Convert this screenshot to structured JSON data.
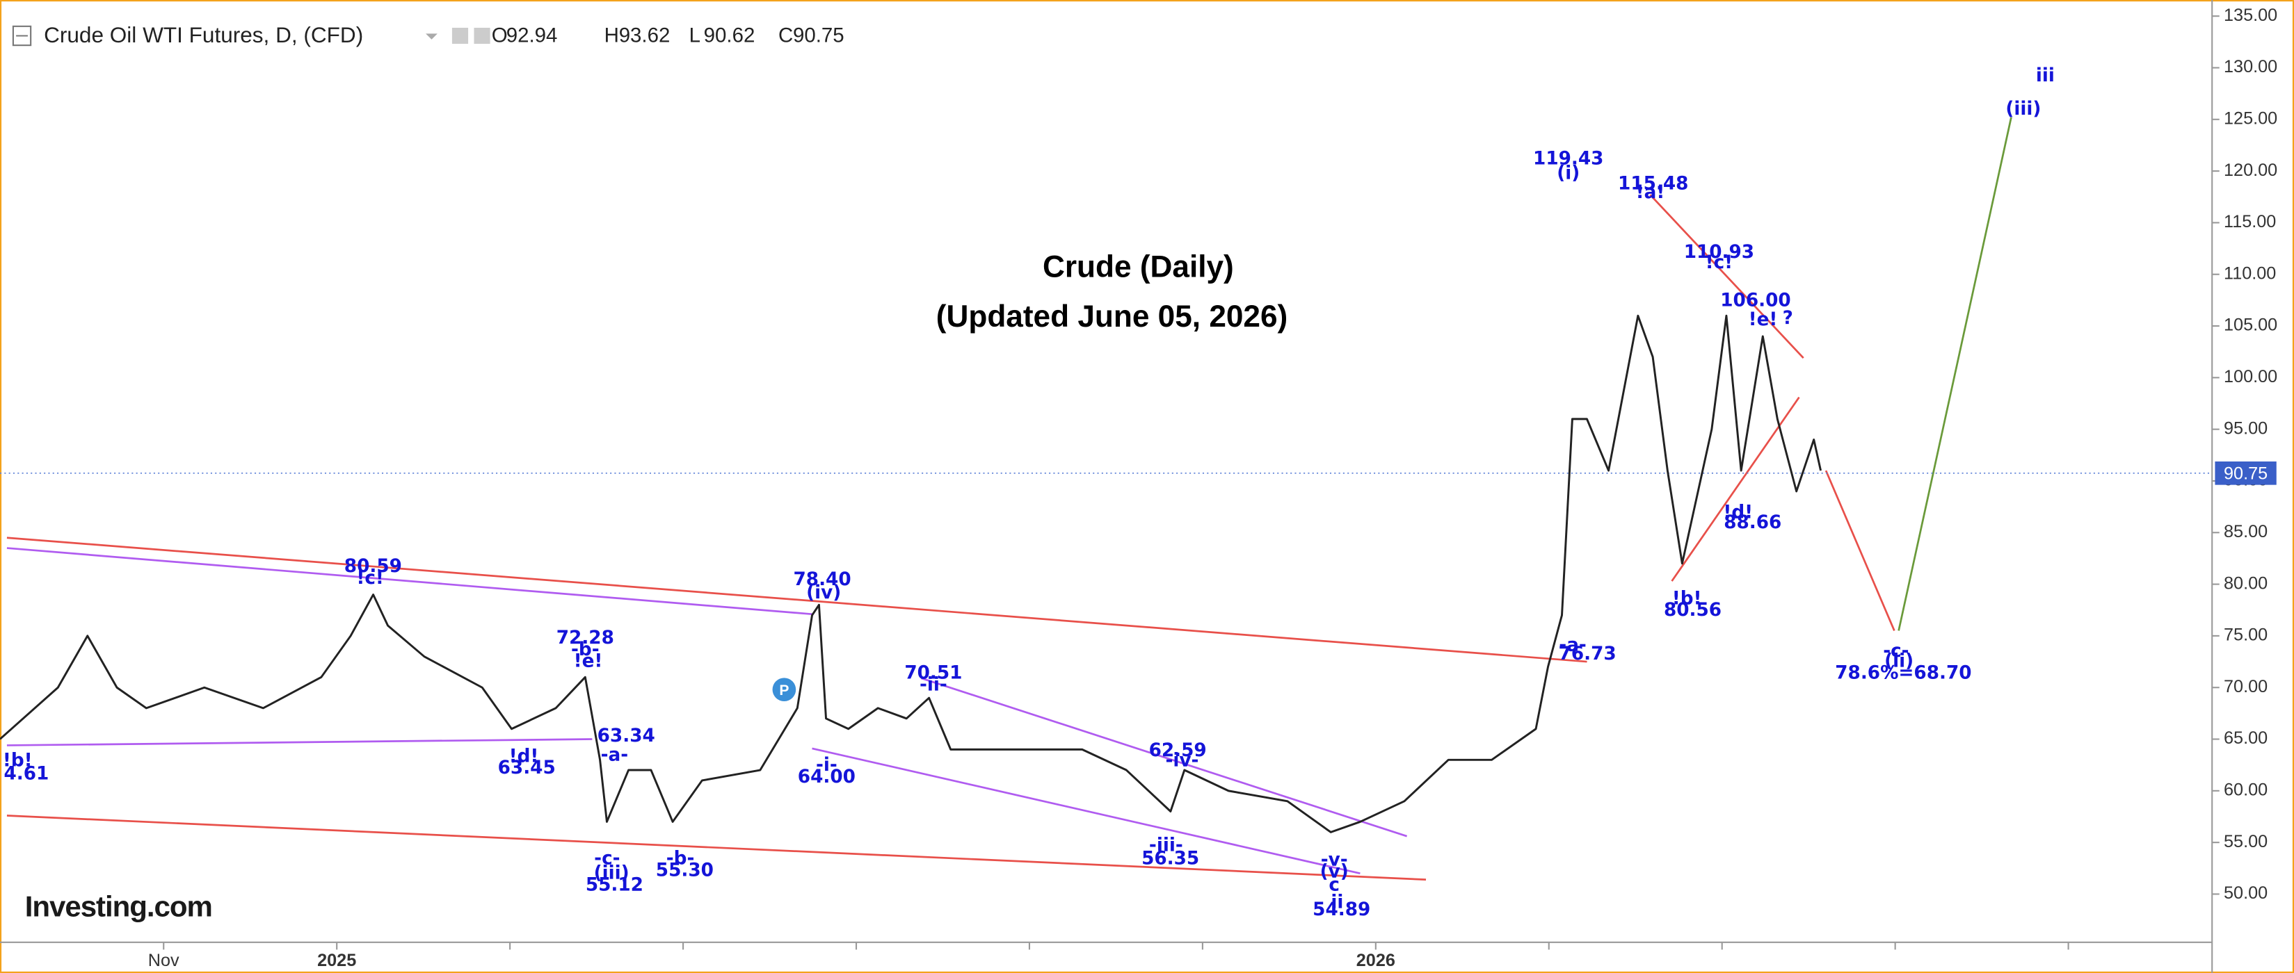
{
  "chart_data": {
    "type": "line",
    "header": {
      "symbol": "Crude Oil WTI Futures, D, (CFD)",
      "ohlc": [
        {
          "label": "O",
          "value": "92.94"
        },
        {
          "label": "H",
          "value": "93.62"
        },
        {
          "label": "L",
          "value": "90.62"
        },
        {
          "label": "C",
          "value": "90.75"
        }
      ]
    },
    "title": "Crude (Daily)",
    "subtitle": "(Updated June 05, 2026)",
    "logo": "Investing.com",
    "marker_label": "P",
    "x": [
      -1.89,
      -1.22,
      -0.88,
      -0.54,
      -0.2,
      0.47,
      1.15,
      1.82,
      2.16,
      2.42,
      2.59,
      3.01,
      3.68,
      4.02,
      4.53,
      4.87,
      5.04,
      5.12,
      5.37,
      5.63,
      5.88,
      6.22,
      6.89,
      7.32,
      7.49,
      7.57,
      7.65,
      7.91,
      8.25,
      8.58,
      8.84,
      9.09,
      9.94,
      10.61,
      11.12,
      11.63,
      11.79,
      12.3,
      12.98,
      13.48,
      13.82,
      14.33,
      14.84,
      15.34,
      15.85,
      15.99,
      16.15,
      16.27,
      16.44,
      16.69,
      17.03,
      17.2,
      17.37,
      17.54,
      17.88,
      18.05,
      18.22,
      18.47,
      18.64,
      18.86,
      19.06,
      19.14
    ],
    "series": [
      {
        "name": "Crude Oil WTI",
        "color": "#222222",
        "values": [
          65,
          70,
          75,
          70,
          68,
          70,
          68,
          71,
          75,
          79,
          76,
          73,
          70,
          66,
          68,
          71,
          63,
          57,
          62,
          62,
          57,
          61,
          62,
          68,
          77,
          78,
          67,
          66,
          68,
          67,
          69,
          64,
          64,
          64,
          62,
          58,
          62,
          60,
          59,
          56,
          57,
          59,
          63,
          63,
          66,
          72,
          77,
          96,
          96,
          91,
          106,
          102,
          91,
          82,
          95,
          106,
          91,
          104,
          96,
          89,
          94,
          91
        ]
      }
    ],
    "last_price": 90.75,
    "trendlines": [
      {
        "color": "#e8504a",
        "x": [
          -1.81,
          16.44
        ],
        "y": [
          84.5,
          72.5
        ]
      },
      {
        "color": "#b05cf0",
        "x": [
          -1.81,
          7.49
        ],
        "y": [
          83.5,
          77.1
        ]
      },
      {
        "color": "#b05cf0",
        "x": [
          -1.81,
          4.95
        ],
        "y": [
          64.4,
          65.0
        ]
      },
      {
        "color": "#e8504a",
        "x": [
          -1.81,
          14.58
        ],
        "y": [
          57.6,
          51.4
        ]
      },
      {
        "color": "#b05cf0",
        "x": [
          8.75,
          14.36
        ],
        "y": [
          70.9,
          55.6
        ]
      },
      {
        "color": "#b05cf0",
        "x": [
          7.49,
          13.82
        ],
        "y": [
          64.1,
          52.0
        ]
      },
      {
        "color": "#e8504a",
        "x": [
          17.17,
          18.94
        ],
        "y": [
          117.7,
          101.9
        ]
      },
      {
        "color": "#e8504a",
        "x": [
          17.42,
          18.89
        ],
        "y": [
          80.3,
          98.1
        ]
      },
      {
        "color": "#e8504a",
        "x": [
          19.2,
          19.99
        ],
        "y": [
          91.0,
          75.5
        ]
      },
      {
        "color": "#6a9a3a",
        "x": [
          20.04,
          21.34
        ],
        "y": [
          75.5,
          125.2
        ]
      }
    ],
    "annotations": [
      "80.59",
      "!c!",
      "72.28",
      "-b-",
      "!e!",
      "63.34",
      "-a-",
      "!d!",
      "63.45",
      "!b!",
      "4.61",
      "-c-",
      "(iii)",
      "55.12",
      "-b-",
      "55.30",
      "78.40",
      "(iv)",
      "-i-",
      "64.00",
      "70.51",
      "-ii-",
      "62.59",
      "-iv-",
      "-iii-",
      "56.35",
      "-v-",
      "(v)",
      "c",
      "ii",
      "54.89",
      "119.43",
      "(i)",
      "115.48",
      "!a!",
      "110.93",
      "!c!",
      "106.00",
      "!e!",
      "?",
      "!d!",
      "88.66",
      "!b!",
      "80.56",
      "-a-",
      "76.73",
      "-c-",
      "(ii)",
      "78.6%=68.70",
      "iii",
      "(iii)"
    ],
    "xlim": [
      -1.89,
      23.66
    ],
    "xticks": [
      {
        "value": 0,
        "label": "Nov"
      },
      {
        "value": 2,
        "label": "2025"
      },
      {
        "value": 14,
        "label": "2026"
      }
    ],
    "minor_xticks": [
      4,
      6,
      8,
      10,
      12,
      16,
      18,
      20,
      22
    ],
    "ylim": [
      45.33,
      136.56
    ],
    "yticks": [
      {
        "value": 50,
        "label": "50.00"
      },
      {
        "value": 55,
        "label": "55.00"
      },
      {
        "value": 60,
        "label": "60.00"
      },
      {
        "value": 65,
        "label": "65.00"
      },
      {
        "value": 70,
        "label": "70.00"
      },
      {
        "value": 75,
        "label": "75.00"
      },
      {
        "value": 80,
        "label": "80.00"
      },
      {
        "value": 85,
        "label": "85.00"
      },
      {
        "value": 90,
        "label": "90.00"
      },
      {
        "value": 95,
        "label": "95.00"
      },
      {
        "value": 100,
        "label": "100.00"
      },
      {
        "value": 105,
        "label": "105.00"
      },
      {
        "value": 110,
        "label": "110.00"
      },
      {
        "value": 115,
        "label": "115.00"
      },
      {
        "value": 120,
        "label": "120.00"
      },
      {
        "value": 125,
        "label": "125.00"
      },
      {
        "value": 130,
        "label": "130.00"
      },
      {
        "value": 135,
        "label": "135.00"
      }
    ]
  }
}
